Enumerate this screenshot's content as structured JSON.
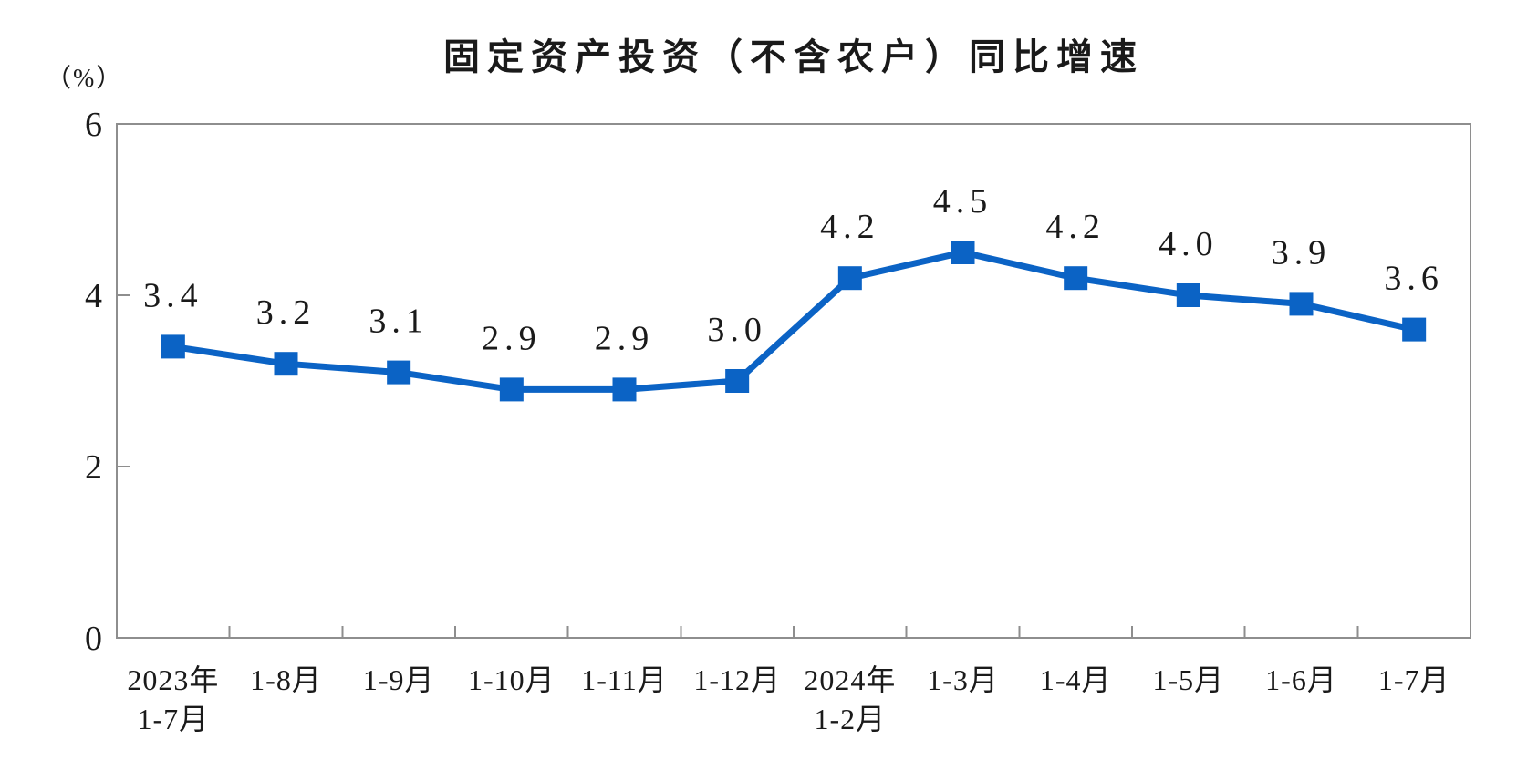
{
  "chart_data": {
    "type": "line",
    "title": "固定资产投资（不含农户）同比增速",
    "ylabel": "（%）",
    "xlabel": "",
    "categories": [
      "2023年\n1-7月",
      "1-8月",
      "1-9月",
      "1-10月",
      "1-11月",
      "1-12月",
      "2024年\n1-2月",
      "1-3月",
      "1-4月",
      "1-5月",
      "1-6月",
      "1-7月"
    ],
    "values": [
      3.4,
      3.2,
      3.1,
      2.9,
      2.9,
      3.0,
      4.2,
      4.5,
      4.2,
      4.0,
      3.9,
      3.6
    ],
    "point_labels": [
      "3.4",
      "3.2",
      "3.1",
      "2.9",
      "2.9",
      "3.0",
      "4.2",
      "4.5",
      "4.2",
      "4.0",
      "3.9",
      "3.6"
    ],
    "y_ticks": [
      0,
      2,
      4,
      6
    ],
    "ylim": [
      0,
      6
    ],
    "grid": false,
    "legend": "none",
    "marker": "square"
  },
  "colors": {
    "line": "#0B63C5",
    "axis": "#8E8E8E",
    "text": "#1A1A1A"
  }
}
